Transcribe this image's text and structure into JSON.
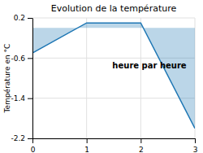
{
  "chart_data": {
    "type": "area",
    "title": "Evolution de la température",
    "y_label": "Température en °C",
    "annotation": "heure par heure",
    "x": [
      0,
      1,
      2,
      3
    ],
    "y": [
      -0.5,
      0.1,
      0.1,
      -2.0
    ],
    "xlim": [
      0,
      3
    ],
    "ylim": [
      -2.2,
      0.2
    ],
    "xticks": [
      0,
      1,
      2,
      3
    ],
    "yticks": [
      -2.2,
      -1.4,
      -0.6,
      0.2
    ],
    "grid": true
  }
}
